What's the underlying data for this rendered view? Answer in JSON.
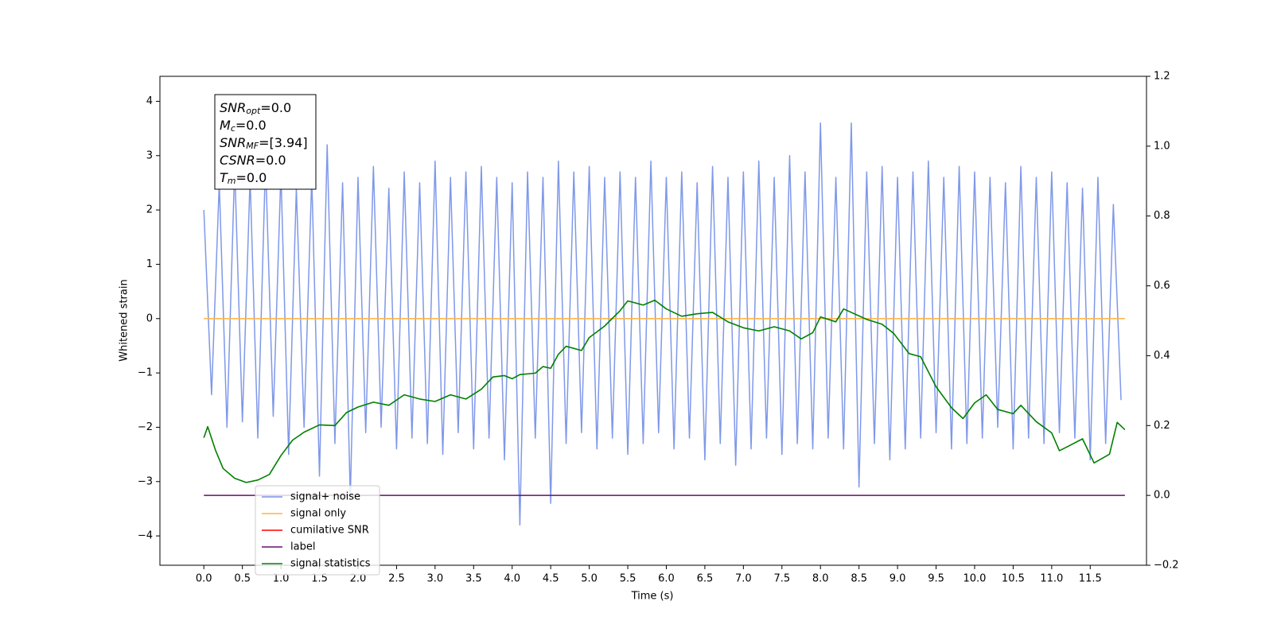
{
  "chart_data": {
    "type": "line",
    "xlabel": "Time (s)",
    "ylabel": "Whitened strain",
    "xlim": [
      -0.57,
      12.23
    ],
    "xticks": [
      {
        "value": 0,
        "label": "0.0"
      },
      0.5,
      {
        "value": 1,
        "label": "1.0"
      },
      1.5,
      {
        "value": 2,
        "label": "2.0"
      },
      2.5,
      {
        "value": 3,
        "label": "3.0"
      },
      3.5,
      {
        "value": 4,
        "label": "4.0"
      },
      4.5,
      {
        "value": 5,
        "label": "5.0"
      },
      5.5,
      {
        "value": 6,
        "label": "6.0"
      },
      6.5,
      {
        "value": 7,
        "label": "7.0"
      },
      7.5,
      {
        "value": 8,
        "label": "8.0"
      },
      8.5,
      {
        "value": 9,
        "label": "9.0"
      },
      9.5,
      {
        "value": 10,
        "label": "10.0"
      },
      10.5,
      {
        "value": 11,
        "label": "11.0"
      },
      11.5
    ],
    "ylim": [
      -4.54,
      4.46
    ],
    "yticks": [
      {
        "value": -4,
        "label": "−4"
      },
      {
        "value": -3,
        "label": "−3"
      },
      {
        "value": -2,
        "label": "−2"
      },
      {
        "value": -1,
        "label": "−1"
      },
      0,
      1,
      2,
      3,
      4
    ],
    "y2lim": [
      -0.2,
      1.2
    ],
    "y2ticks": [
      {
        "value": -0.2,
        "label": "−0.2"
      },
      {
        "value": 0,
        "label": "0.0"
      },
      0.2,
      0.4,
      0.6,
      0.8,
      {
        "value": 1,
        "label": "1.0"
      },
      1.2
    ],
    "legend": "lower left",
    "annotations": [
      {
        "name": "SNR",
        "sub": "opt",
        "text": "=0.0"
      },
      {
        "name": "M",
        "sub": "c",
        "text": "=0.0"
      },
      {
        "name": "SNR",
        "sub": "MF",
        "text": "=[3.94]"
      },
      {
        "name": "CSNR",
        "text": "=0.0"
      },
      {
        "name": "T",
        "sub": "m",
        "text": "=0.0"
      }
    ],
    "series": [
      {
        "name": "signal+ noise",
        "color": "#7892e8",
        "x": [
          0.0,
          0.1,
          0.2,
          0.3,
          0.4,
          0.5,
          0.6,
          0.7,
          0.8,
          0.9,
          1.0,
          1.1,
          1.2,
          1.3,
          1.4,
          1.5,
          1.6,
          1.7,
          1.8,
          1.9,
          2.0,
          2.1,
          2.2,
          2.3,
          2.4,
          2.5,
          2.6,
          2.7,
          2.8,
          2.9,
          3.0,
          3.1,
          3.2,
          3.3,
          3.4,
          3.5,
          3.6,
          3.7,
          3.8,
          3.9,
          4.0,
          4.1,
          4.2,
          4.3,
          4.4,
          4.5,
          4.6,
          4.7,
          4.8,
          4.9,
          5.0,
          5.1,
          5.2,
          5.3,
          5.4,
          5.5,
          5.6,
          5.7,
          5.8,
          5.9,
          6.0,
          6.1,
          6.2,
          6.3,
          6.4,
          6.5,
          6.6,
          6.7,
          6.8,
          6.9,
          7.0,
          7.1,
          7.2,
          7.3,
          7.4,
          7.5,
          7.6,
          7.7,
          7.8,
          7.9,
          8.0,
          8.1,
          8.2,
          8.3,
          8.4,
          8.5,
          8.6,
          8.7,
          8.8,
          8.9,
          9.0,
          9.1,
          9.2,
          9.3,
          9.4,
          9.5,
          9.6,
          9.7,
          9.8,
          9.9,
          10.0,
          10.1,
          10.2,
          10.3,
          10.4,
          10.5,
          10.6,
          10.7,
          10.8,
          10.9,
          11.0,
          11.1,
          11.2,
          11.3,
          11.4,
          11.5,
          11.6,
          11.7,
          11.8,
          11.9
        ],
        "values": [
          2.0,
          -1.4,
          2.5,
          -2.0,
          2.8,
          -1.9,
          2.6,
          -2.2,
          2.9,
          -1.8,
          2.7,
          -2.5,
          2.4,
          -2.0,
          2.6,
          -2.9,
          3.2,
          -2.3,
          2.5,
          -3.3,
          2.6,
          -2.1,
          2.8,
          -2.0,
          2.4,
          -2.4,
          2.7,
          -2.2,
          2.5,
          -2.3,
          2.9,
          -2.5,
          2.6,
          -2.1,
          2.7,
          -2.4,
          2.8,
          -2.2,
          2.6,
          -2.6,
          2.5,
          -3.8,
          2.7,
          -2.2,
          2.6,
          -3.4,
          2.9,
          -2.3,
          2.7,
          -2.1,
          2.8,
          -2.4,
          2.6,
          -2.2,
          2.7,
          -2.5,
          2.6,
          -2.3,
          2.9,
          -2.1,
          2.6,
          -2.4,
          2.7,
          -2.2,
          2.5,
          -2.6,
          2.8,
          -2.3,
          2.6,
          -2.7,
          2.7,
          -2.4,
          2.9,
          -2.2,
          2.6,
          -2.5,
          3.0,
          -2.3,
          2.7,
          -2.4,
          3.6,
          -2.2,
          2.6,
          -2.4,
          3.6,
          -3.1,
          2.7,
          -2.3,
          2.8,
          -2.6,
          2.6,
          -2.4,
          2.7,
          -2.2,
          2.9,
          -2.1,
          2.6,
          -2.4,
          2.8,
          -2.3,
          2.7,
          -2.2,
          2.6,
          -2.0,
          2.5,
          -2.4,
          2.8,
          -2.2,
          2.6,
          -2.3,
          2.7,
          -2.1,
          2.5,
          -2.2,
          2.4,
          -2.6,
          2.6,
          -2.3,
          2.1,
          -1.5
        ]
      },
      {
        "name": "signal only",
        "color": "#ffb347",
        "x": [
          0.0,
          11.95
        ],
        "values": [
          0,
          0
        ]
      },
      {
        "name": "cumilative SNR",
        "color": "#ff0000",
        "x": [],
        "values": []
      },
      {
        "name": "label",
        "color": "#6a0d6e",
        "axis": "y2",
        "x": [
          0.0,
          11.95
        ],
        "values": [
          0,
          0
        ]
      },
      {
        "name": "signal statistics",
        "color": "#008000",
        "axis": "y2",
        "x": [
          0,
          0.05,
          0.15,
          0.25,
          0.4,
          0.55,
          0.7,
          0.85,
          1.0,
          1.15,
          1.3,
          1.5,
          1.7,
          1.85,
          2.0,
          2.2,
          2.4,
          2.6,
          2.8,
          3.0,
          3.2,
          3.4,
          3.6,
          3.75,
          3.9,
          4.0,
          4.1,
          4.3,
          4.4,
          4.5,
          4.6,
          4.7,
          4.9,
          5.0,
          5.2,
          5.4,
          5.5,
          5.7,
          5.85,
          6.0,
          6.2,
          6.4,
          6.6,
          6.8,
          7.0,
          7.2,
          7.4,
          7.6,
          7.75,
          7.9,
          8.0,
          8.2,
          8.3,
          8.6,
          8.8,
          8.95,
          9.15,
          9.3,
          9.5,
          9.7,
          9.85,
          10.0,
          10.15,
          10.3,
          10.5,
          10.6,
          10.8,
          11.0,
          11.1,
          11.2,
          11.4,
          11.55,
          11.75,
          11.85,
          11.95
        ],
        "values": [
          0.165,
          0.197,
          0.13,
          0.077,
          0.049,
          0.037,
          0.044,
          0.06,
          0.114,
          0.158,
          0.181,
          0.202,
          0.2,
          0.237,
          0.253,
          0.267,
          0.258,
          0.288,
          0.276,
          0.269,
          0.288,
          0.276,
          0.304,
          0.339,
          0.343,
          0.334,
          0.346,
          0.35,
          0.369,
          0.364,
          0.404,
          0.427,
          0.415,
          0.452,
          0.485,
          0.529,
          0.557,
          0.545,
          0.559,
          0.534,
          0.513,
          0.52,
          0.524,
          0.497,
          0.48,
          0.471,
          0.483,
          0.471,
          0.448,
          0.466,
          0.511,
          0.497,
          0.534,
          0.504,
          0.49,
          0.464,
          0.406,
          0.397,
          0.311,
          0.251,
          0.22,
          0.265,
          0.288,
          0.246,
          0.234,
          0.258,
          0.211,
          0.179,
          0.128,
          0.139,
          0.162,
          0.093,
          0.118,
          0.209,
          0.188
        ]
      }
    ]
  }
}
